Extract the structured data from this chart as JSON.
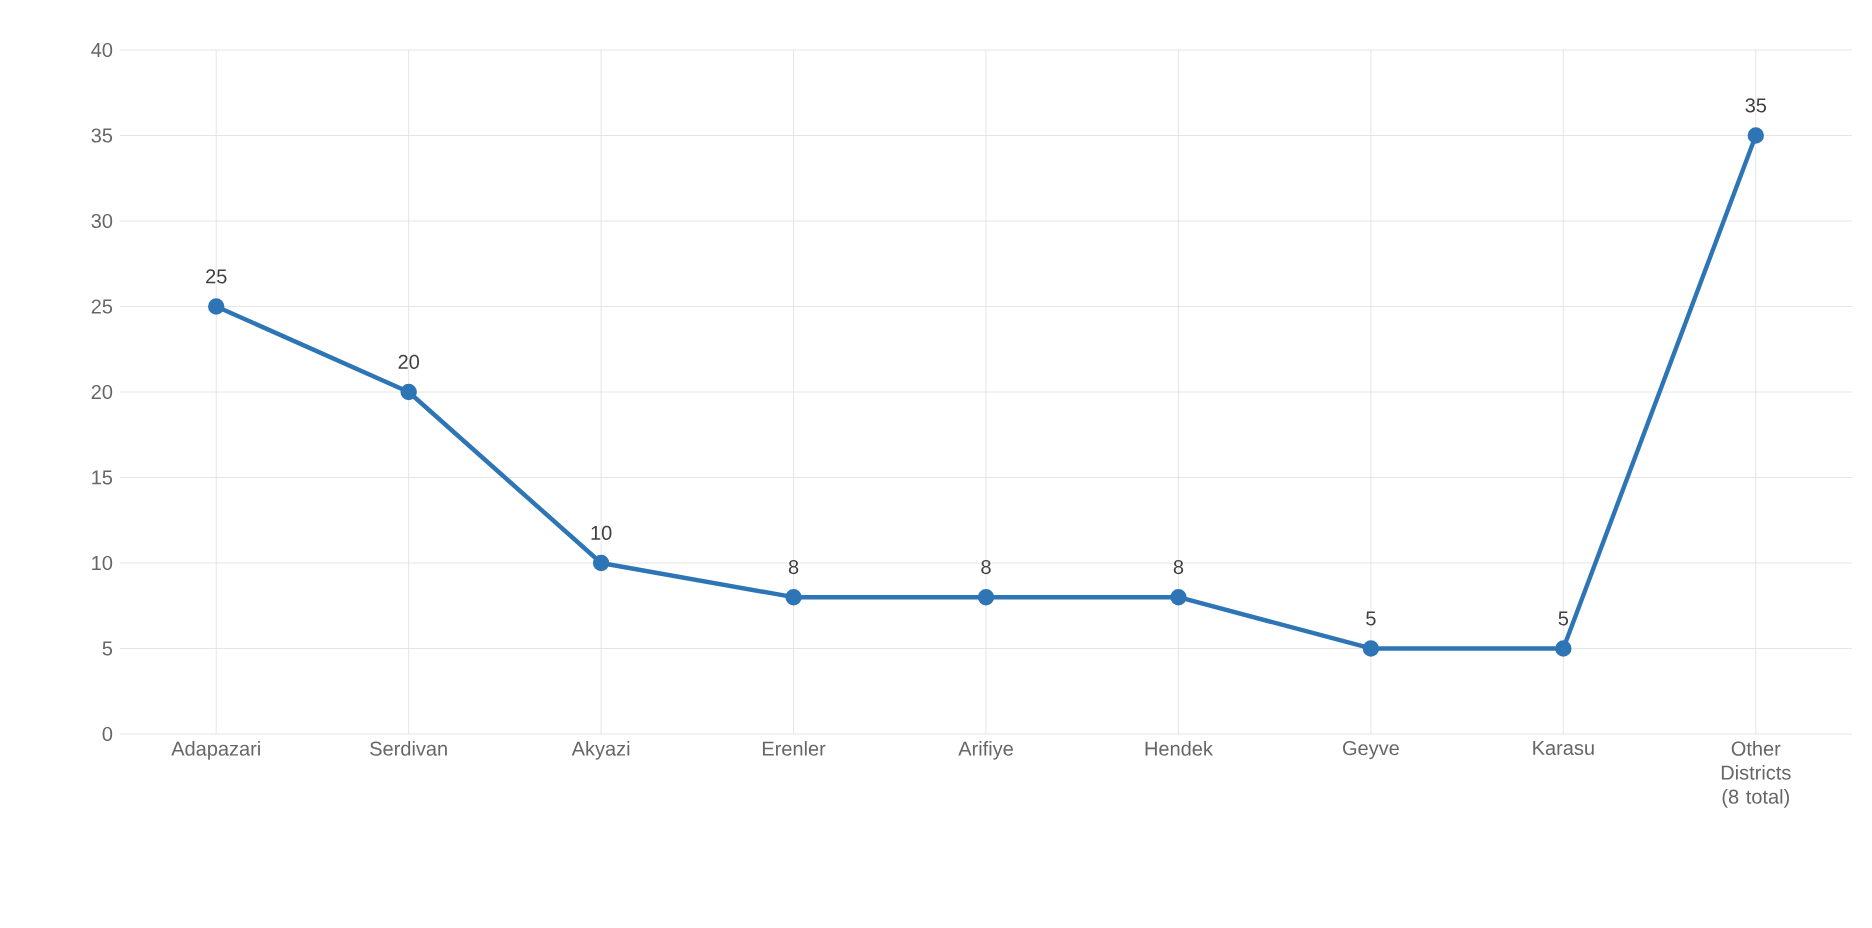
{
  "chart_data": {
    "type": "line",
    "categories": [
      "Adapazari",
      "Serdivan",
      "Akyazi",
      "Erenler",
      "Arifiye",
      "Hendek",
      "Geyve",
      "Karasu",
      "Other Districts (8 total)"
    ],
    "series": [
      {
        "color": "#2e75b6",
        "values": [
          25,
          20,
          10,
          8,
          8,
          8,
          5,
          5,
          35
        ]
      }
    ],
    "ylim": [
      0,
      40
    ],
    "yticks": [
      0,
      5,
      10,
      15,
      20,
      25,
      30,
      35,
      40
    ],
    "grid": true,
    "marker": "circle",
    "line_style": "solid",
    "data_labels": true
  }
}
